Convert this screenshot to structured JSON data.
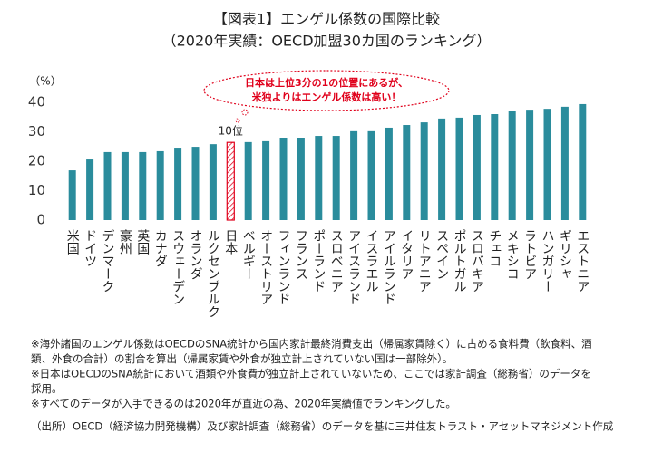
{
  "chart_data": {
    "type": "bar",
    "title": "【図表1】エンゲル係数の国際比較",
    "subtitle": "（2020年実績：OECD加盟30カ国のランキング）",
    "y_label": "（%）",
    "categories": [
      "米国",
      "ドイツ",
      "デンマーク",
      "豪州",
      "英国",
      "カナダ",
      "スウェーデン",
      "オランダ",
      "ルクセンブルク",
      "日本",
      "ベルギー",
      "オーストリア",
      "フィンランド",
      "フランス",
      "ポーランド",
      "スロベニア",
      "アイスランド",
      "イスラエル",
      "アイルランド",
      "イタリア",
      "リトアニア",
      "スペイン",
      "ポルトガル",
      "スロバキア",
      "チェコ",
      "メキシコ",
      "ラトビア",
      "ハンガリー",
      "ギリシャ",
      "エストニア"
    ],
    "values": [
      16.9,
      20.6,
      23.1,
      23.1,
      23.1,
      23.4,
      24.6,
      24.9,
      25.8,
      26.4,
      26.5,
      26.8,
      28.0,
      28.0,
      28.6,
      28.6,
      30.2,
      30.2,
      31.4,
      32.3,
      33.2,
      34.5,
      34.8,
      35.7,
      36.0,
      37.2,
      37.5,
      37.8,
      38.5,
      39.4
    ],
    "color": "#2a8c9c",
    "highlight_color": "#e0001b",
    "ylim": [
      0,
      40
    ],
    "yticks": [
      0,
      10,
      20,
      30,
      40
    ],
    "annotation": {
      "text": "10位",
      "category": "日本"
    },
    "callout": [
      "日本は上位3分の1の位置にあるが、",
      "米独よりはエンゲル係数は高い！"
    ],
    "notes": [
      "※海外諸国のエンゲル係数はOECDのSNA統計から国内家計最終消費支出（帰属家賃除く）に占める食料費（飲食料、酒",
      "類、外食の合計）の割合を算出（帰属家賃や外食が独立計上されていない国は一部除外）。",
      "※日本はOECDのSNA統計において酒類や外食費が独立計上されていないため、ここでは家計調査（総務省）のデータを",
      "採用。",
      "※すべてのデータが入手できるのは2020年が直近の為、2020年実績値でランキングした。"
    ],
    "source": "（出所）OECD（経済協力開発機構）及び家計調査（総務省）のデータを基に三井住友トラスト・アセットマネジメント作成"
  }
}
